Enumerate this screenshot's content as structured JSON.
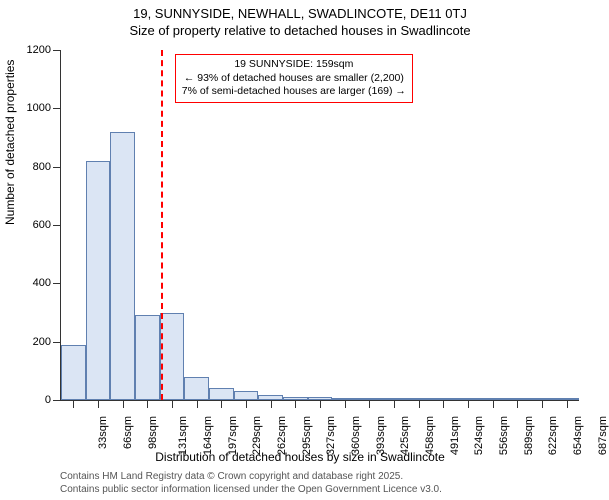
{
  "title_line1": "19, SUNNYSIDE, NEWHALL, SWADLINCOTE, DE11 0TJ",
  "title_line2": "Size of property relative to detached houses in Swadlincote",
  "ylabel": "Number of detached properties",
  "xlabel": "Distribution of detached houses by size in Swadlincote",
  "footer_line1": "Contains HM Land Registry data © Crown copyright and database right 2025.",
  "footer_line2": "Contains public sector information licensed under the Open Government Licence v3.0.",
  "chart": {
    "type": "histogram",
    "ylim": [
      0,
      1200
    ],
    "ytick_step": 200,
    "yticks": [
      0,
      200,
      400,
      600,
      800,
      1000,
      1200
    ],
    "x_categories": [
      "33sqm",
      "66sqm",
      "98sqm",
      "131sqm",
      "164sqm",
      "197sqm",
      "229sqm",
      "262sqm",
      "295sqm",
      "327sqm",
      "360sqm",
      "393sqm",
      "425sqm",
      "458sqm",
      "491sqm",
      "524sqm",
      "556sqm",
      "589sqm",
      "622sqm",
      "654sqm",
      "687sqm"
    ],
    "values": [
      190,
      820,
      920,
      290,
      300,
      80,
      40,
      30,
      18,
      12,
      10,
      6,
      5,
      4,
      3,
      2,
      2,
      2,
      1,
      1,
      1
    ],
    "bar_fill": "#dbe5f4",
    "bar_stroke": "#6080b0",
    "background_color": "#ffffff",
    "axis_color": "#333333",
    "reference_line": {
      "x_value": 159,
      "x_range": [
        33,
        687
      ],
      "color": "#ff0000",
      "dash": "4,3"
    },
    "annotation": {
      "line1": "19 SUNNYSIDE: 159sqm",
      "line2": "← 93% of detached houses are smaller (2,200)",
      "line3": "7% of semi-detached houses are larger (169) →",
      "border_color": "#ff0000",
      "text_color": "#000000",
      "bg_color": "#ffffff"
    }
  }
}
